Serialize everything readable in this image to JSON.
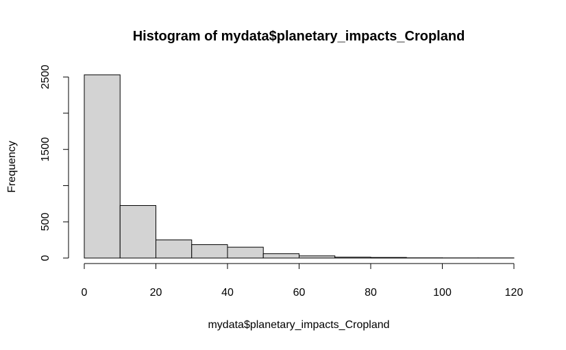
{
  "chart_data": {
    "type": "bar",
    "title": "Histogram of mydata$planetary_impacts_Cropland",
    "xlabel": "mydata$planetary_impacts_Cropland",
    "ylabel": "Frequency",
    "bins": [
      {
        "from": 0,
        "to": 10,
        "count": 2530
      },
      {
        "from": 10,
        "to": 20,
        "count": 725
      },
      {
        "from": 20,
        "to": 30,
        "count": 250
      },
      {
        "from": 30,
        "to": 40,
        "count": 185
      },
      {
        "from": 40,
        "to": 50,
        "count": 150
      },
      {
        "from": 50,
        "to": 60,
        "count": 60
      },
      {
        "from": 60,
        "to": 70,
        "count": 30
      },
      {
        "from": 70,
        "to": 80,
        "count": 12
      },
      {
        "from": 80,
        "to": 90,
        "count": 8
      },
      {
        "from": 90,
        "to": 100,
        "count": 3
      },
      {
        "from": 100,
        "to": 110,
        "count": 2
      },
      {
        "from": 110,
        "to": 120,
        "count": 2
      }
    ],
    "xlim": [
      0,
      120
    ],
    "ylim": [
      0,
      2530
    ],
    "x_ticks": [
      0,
      20,
      40,
      60,
      80,
      100,
      120
    ],
    "x_tick_labels": [
      "0",
      "20",
      "40",
      "60",
      "80",
      "100",
      "120"
    ],
    "y_ticks": [
      0,
      500,
      1000,
      1500,
      2000,
      2500
    ],
    "y_tick_labels": [
      "0",
      "500",
      "",
      "1500",
      "",
      "2500"
    ],
    "bar_color": "#d3d3d3",
    "grid": false,
    "legend": "none"
  }
}
